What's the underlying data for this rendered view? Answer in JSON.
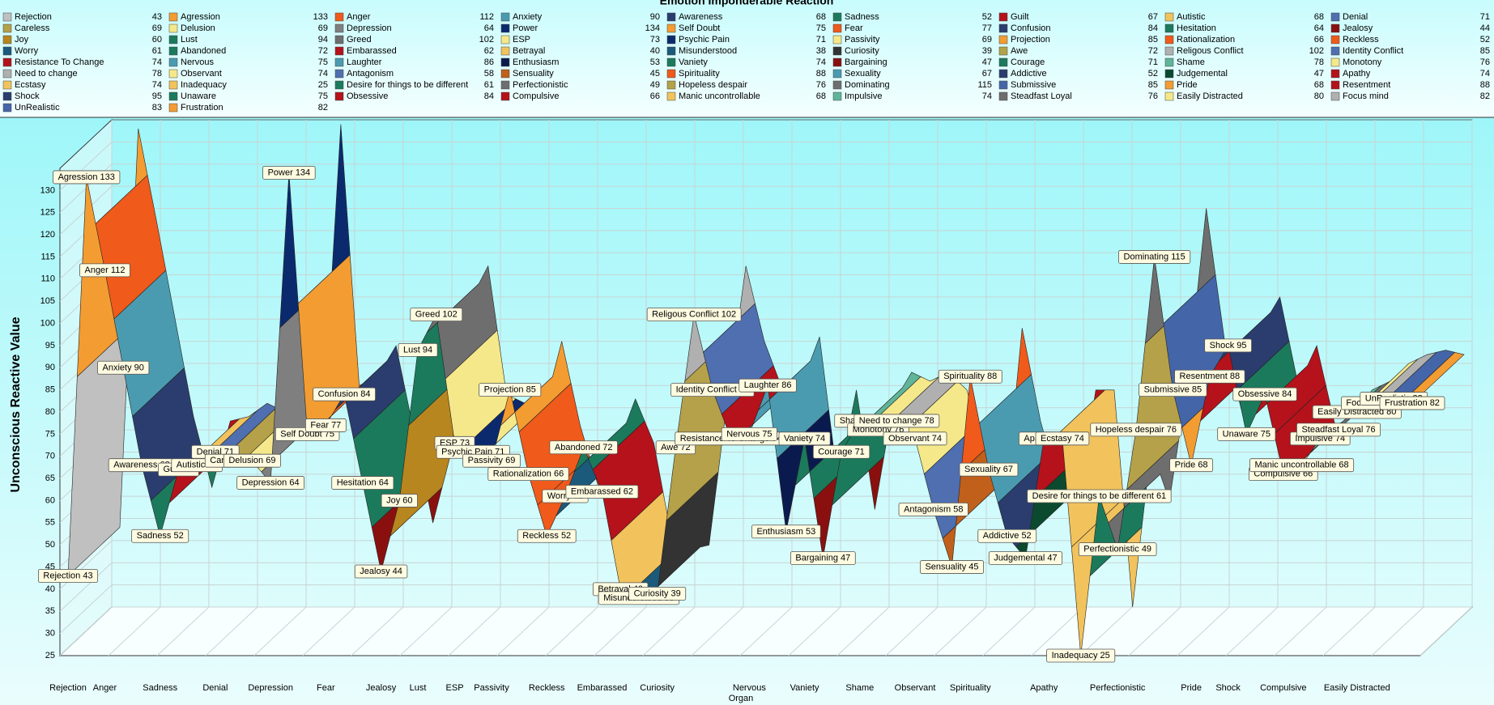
{
  "chart_data": {
    "type": "ribbon3d",
    "title": "Emotion Imponderable Reaction",
    "x_label": "Organ",
    "y_label": "Unconscious Reactive Value",
    "ylim": [
      25,
      135
    ],
    "yticks": [
      25,
      30,
      35,
      40,
      45,
      50,
      55,
      60,
      65,
      70,
      75,
      80,
      85,
      90,
      95,
      100,
      105,
      110,
      115,
      120,
      125,
      130
    ],
    "items": [
      {
        "name": "Rejection",
        "value": 43,
        "color": "#c0c0c0"
      },
      {
        "name": "Agression",
        "value": 133,
        "color": "#f39c32"
      },
      {
        "name": "Anger",
        "value": 112,
        "color": "#f05a1a"
      },
      {
        "name": "Anxiety",
        "value": 90,
        "color": "#4b9bb0"
      },
      {
        "name": "Awareness",
        "value": 68,
        "color": "#2a3d6e"
      },
      {
        "name": "Sadness",
        "value": 52,
        "color": "#1c7a5c"
      },
      {
        "name": "Guilt",
        "value": 67,
        "color": "#b5121b"
      },
      {
        "name": "Autistic",
        "value": 68,
        "color": "#f2c35c"
      },
      {
        "name": "Denial",
        "value": 71,
        "color": "#4f6fb0"
      },
      {
        "name": "Careless",
        "value": 69,
        "color": "#b5a14a"
      },
      {
        "name": "Delusion",
        "value": 69,
        "color": "#f5e88a"
      },
      {
        "name": "Depression",
        "value": 64,
        "color": "#7f7f7f"
      },
      {
        "name": "Power",
        "value": 134,
        "color": "#0b2a6e"
      },
      {
        "name": "Self Doubt",
        "value": 75,
        "color": "#f39c32"
      },
      {
        "name": "Fear",
        "value": 77,
        "color": "#f05a1a"
      },
      {
        "name": "Confusion",
        "value": 84,
        "color": "#2a3d6e"
      },
      {
        "name": "Hesitation",
        "value": 64,
        "color": "#1c7a5c"
      },
      {
        "name": "Jealosy",
        "value": 44,
        "color": "#8a1010"
      },
      {
        "name": "Joy",
        "value": 60,
        "color": "#b8861e"
      },
      {
        "name": "Lust",
        "value": 94,
        "color": "#1c7a5c"
      },
      {
        "name": "Greed",
        "value": 102,
        "color": "#6e6e6e"
      },
      {
        "name": "ESP",
        "value": 73,
        "color": "#f5e88a"
      },
      {
        "name": "Psychic Pain",
        "value": 71,
        "color": "#0b2a6e"
      },
      {
        "name": "Passivity",
        "value": 69,
        "color": "#f5e88a"
      },
      {
        "name": "Projection",
        "value": 85,
        "color": "#f39c32"
      },
      {
        "name": "Rationalization",
        "value": 66,
        "color": "#f05a1a"
      },
      {
        "name": "Reckless",
        "value": 52,
        "color": "#f05a1a"
      },
      {
        "name": "Worry",
        "value": 61,
        "color": "#1c5a7c"
      },
      {
        "name": "Abandoned",
        "value": 72,
        "color": "#1c7a5c"
      },
      {
        "name": "Embarassed",
        "value": 62,
        "color": "#b5121b"
      },
      {
        "name": "Betrayal",
        "value": 40,
        "color": "#f2c35c"
      },
      {
        "name": "Misunderstood",
        "value": 38,
        "color": "#1c5a7c"
      },
      {
        "name": "Curiosity",
        "value": 39,
        "color": "#333333"
      },
      {
        "name": "Awe",
        "value": 72,
        "color": "#b5a14a"
      },
      {
        "name": "Religous Conflict",
        "value": 102,
        "color": "#b0b0b0"
      },
      {
        "name": "Identity Conflict",
        "value": 85,
        "color": "#4f6fb0"
      },
      {
        "name": "Resistance To Change",
        "value": 74,
        "color": "#b5121b"
      },
      {
        "name": "Nervous",
        "value": 75,
        "color": "#4b9bb0"
      },
      {
        "name": "Laughter",
        "value": 86,
        "color": "#4b9bb0"
      },
      {
        "name": "Enthusiasm",
        "value": 53,
        "color": "#0b1a4e"
      },
      {
        "name": "Vaniety",
        "value": 74,
        "color": "#1c7a5c"
      },
      {
        "name": "Bargaining",
        "value": 47,
        "color": "#8a1010"
      },
      {
        "name": "Courage",
        "value": 71,
        "color": "#1c7a5c"
      },
      {
        "name": "Shame",
        "value": 78,
        "color": "#5fb59a"
      },
      {
        "name": "Monotony",
        "value": 76,
        "color": "#f5e88a"
      },
      {
        "name": "Need to change",
        "value": 78,
        "color": "#b0b0b0"
      },
      {
        "name": "Observant",
        "value": 74,
        "color": "#f5e88a"
      },
      {
        "name": "Antagonism",
        "value": 58,
        "color": "#4f6fb0"
      },
      {
        "name": "Sensuality",
        "value": 45,
        "color": "#c0601a"
      },
      {
        "name": "Spirituality",
        "value": 88,
        "color": "#f05a1a"
      },
      {
        "name": "Sexuality",
        "value": 67,
        "color": "#4b9bb0"
      },
      {
        "name": "Addictive",
        "value": 52,
        "color": "#2a3d6e"
      },
      {
        "name": "Judgemental",
        "value": 47,
        "color": "#0b4a2e"
      },
      {
        "name": "Apathy",
        "value": 74,
        "color": "#b5121b"
      },
      {
        "name": "Ecstasy",
        "value": 74,
        "color": "#f2c35c"
      },
      {
        "name": "Inadequacy",
        "value": 25,
        "color": "#f2c35c"
      },
      {
        "name": "Desire for things to be different",
        "value": 61,
        "color": "#1c7a5c"
      },
      {
        "name": "Perfectionistic",
        "value": 49,
        "color": "#6e6e6e"
      },
      {
        "name": "Hopeless despair",
        "value": 76,
        "color": "#b5a14a"
      },
      {
        "name": "Dominating",
        "value": 115,
        "color": "#6e6e6e"
      },
      {
        "name": "Submissive",
        "value": 85,
        "color": "#4466a8"
      },
      {
        "name": "Pride",
        "value": 68,
        "color": "#f39c32"
      },
      {
        "name": "Resentment",
        "value": 88,
        "color": "#b5121b"
      },
      {
        "name": "Shock",
        "value": 95,
        "color": "#2a3d6e"
      },
      {
        "name": "Unaware",
        "value": 75,
        "color": "#1c7a5c"
      },
      {
        "name": "Obsessive",
        "value": 84,
        "color": "#b5121b"
      },
      {
        "name": "Compulsive",
        "value": 66,
        "color": "#b5121b"
      },
      {
        "name": "Manic uncontrollable",
        "value": 68,
        "color": "#f2c35c"
      },
      {
        "name": "Impulsive",
        "value": 74,
        "color": "#5fb59a"
      },
      {
        "name": "Steadfast Loyal",
        "value": 76,
        "color": "#6e6e6e"
      },
      {
        "name": "Easily Distracted",
        "value": 80,
        "color": "#f5e88a"
      },
      {
        "name": "Focus mind",
        "value": 82,
        "color": "#b0b0b0"
      },
      {
        "name": "UnRealistic",
        "value": 83,
        "color": "#4466a8"
      },
      {
        "name": "Frustration",
        "value": 82,
        "color": "#f39c32"
      }
    ],
    "categories": [
      "Rejection",
      null,
      "Anger",
      null,
      null,
      "Sadness",
      null,
      null,
      "Denial",
      null,
      null,
      "Depression",
      null,
      null,
      "Fear",
      null,
      null,
      "Jealosy",
      null,
      "Lust",
      null,
      "ESP",
      null,
      "Passivity",
      null,
      null,
      "Reckless",
      null,
      null,
      "Embarassed",
      null,
      null,
      "Curiosity",
      null,
      null,
      null,
      null,
      "Nervous",
      null,
      null,
      "Vaniety",
      null,
      null,
      "Shame",
      null,
      null,
      "Observant",
      null,
      null,
      "Spirituality",
      null,
      null,
      null,
      "Apathy",
      null,
      null,
      null,
      "Perfectionistic",
      null,
      null,
      null,
      "Pride",
      null,
      "Shock",
      null,
      null,
      "Compulsive",
      null,
      null,
      null,
      "Easily Distracted",
      null,
      null,
      null
    ]
  }
}
